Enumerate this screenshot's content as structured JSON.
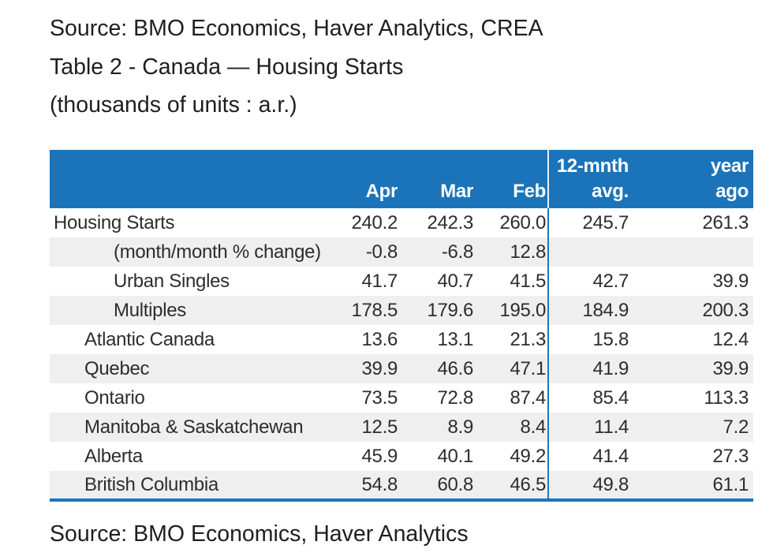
{
  "page": {
    "source_top": "Source: BMO Economics, Haver Analytics, CREA",
    "title": "Table 2 - Canada — Housing Starts",
    "subtitle": "(thousands of units : a.r.)",
    "source_bottom": "Source: BMO Economics, Haver Analytics"
  },
  "colors": {
    "header_blue": "#1b74b9",
    "divider_blue": "#2577b8",
    "bottom_border_blue": "#1c74ba",
    "row_stripe_gray": "#efefef",
    "body_text": "#2d2d2d"
  },
  "table": {
    "header": {
      "label": "",
      "apr": "Apr",
      "mar": "Mar",
      "feb": "Feb",
      "avg_line1": "12-mnth",
      "avg_line2": "avg.",
      "year_line1": "year",
      "year_line2": "ago"
    },
    "rows": [
      {
        "label": "Housing Starts",
        "indent": 0,
        "apr": "240.2",
        "mar": "242.3",
        "feb": "260.0",
        "avg": "245.7",
        "year_ago": "261.3"
      },
      {
        "label": "(month/month % change)",
        "indent": 2,
        "apr": "-0.8",
        "mar": "-6.8",
        "feb": "12.8",
        "avg": "",
        "year_ago": ""
      },
      {
        "label": "Urban Singles",
        "indent": 2,
        "apr": "41.7",
        "mar": "40.7",
        "feb": "41.5",
        "avg": "42.7",
        "year_ago": "39.9"
      },
      {
        "label": "Multiples",
        "indent": 2,
        "apr": "178.5",
        "mar": "179.6",
        "feb": "195.0",
        "avg": "184.9",
        "year_ago": "200.3"
      },
      {
        "label": "Atlantic Canada",
        "indent": 1,
        "apr": "13.6",
        "mar": "13.1",
        "feb": "21.3",
        "avg": "15.8",
        "year_ago": "12.4"
      },
      {
        "label": "Quebec",
        "indent": 1,
        "apr": "39.9",
        "mar": "46.6",
        "feb": "47.1",
        "avg": "41.9",
        "year_ago": "39.9"
      },
      {
        "label": "Ontario",
        "indent": 1,
        "apr": "73.5",
        "mar": "72.8",
        "feb": "87.4",
        "avg": "85.4",
        "year_ago": "113.3"
      },
      {
        "label": "Manitoba & Saskatchewan",
        "indent": 1,
        "apr": "12.5",
        "mar": "8.9",
        "feb": "8.4",
        "avg": "11.4",
        "year_ago": "7.2"
      },
      {
        "label": "Alberta",
        "indent": 1,
        "apr": "45.9",
        "mar": "40.1",
        "feb": "49.2",
        "avg": "41.4",
        "year_ago": "27.3"
      },
      {
        "label": "British Columbia",
        "indent": 1,
        "apr": "54.8",
        "mar": "60.8",
        "feb": "46.5",
        "avg": "49.8",
        "year_ago": "61.1"
      }
    ]
  },
  "chart_data": {
    "type": "table",
    "title": "Table 2 - Canada — Housing Starts",
    "units": "thousands of units : a.r.",
    "columns": [
      "",
      "Apr",
      "Mar",
      "Feb",
      "12-mnth avg.",
      "year ago"
    ],
    "rows": [
      [
        "Housing Starts",
        240.2,
        242.3,
        260.0,
        245.7,
        261.3
      ],
      [
        "(month/month % change)",
        -0.8,
        -6.8,
        12.8,
        null,
        null
      ],
      [
        "Urban Singles",
        41.7,
        40.7,
        41.5,
        42.7,
        39.9
      ],
      [
        "Multiples",
        178.5,
        179.6,
        195.0,
        184.9,
        200.3
      ],
      [
        "Atlantic Canada",
        13.6,
        13.1,
        21.3,
        15.8,
        12.4
      ],
      [
        "Quebec",
        39.9,
        46.6,
        47.1,
        41.9,
        39.9
      ],
      [
        "Ontario",
        73.5,
        72.8,
        87.4,
        85.4,
        113.3
      ],
      [
        "Manitoba & Saskatchewan",
        12.5,
        8.9,
        8.4,
        11.4,
        7.2
      ],
      [
        "Alberta",
        45.9,
        40.1,
        49.2,
        41.4,
        27.3
      ],
      [
        "British Columbia",
        54.8,
        60.8,
        46.5,
        49.8,
        61.1
      ]
    ]
  }
}
